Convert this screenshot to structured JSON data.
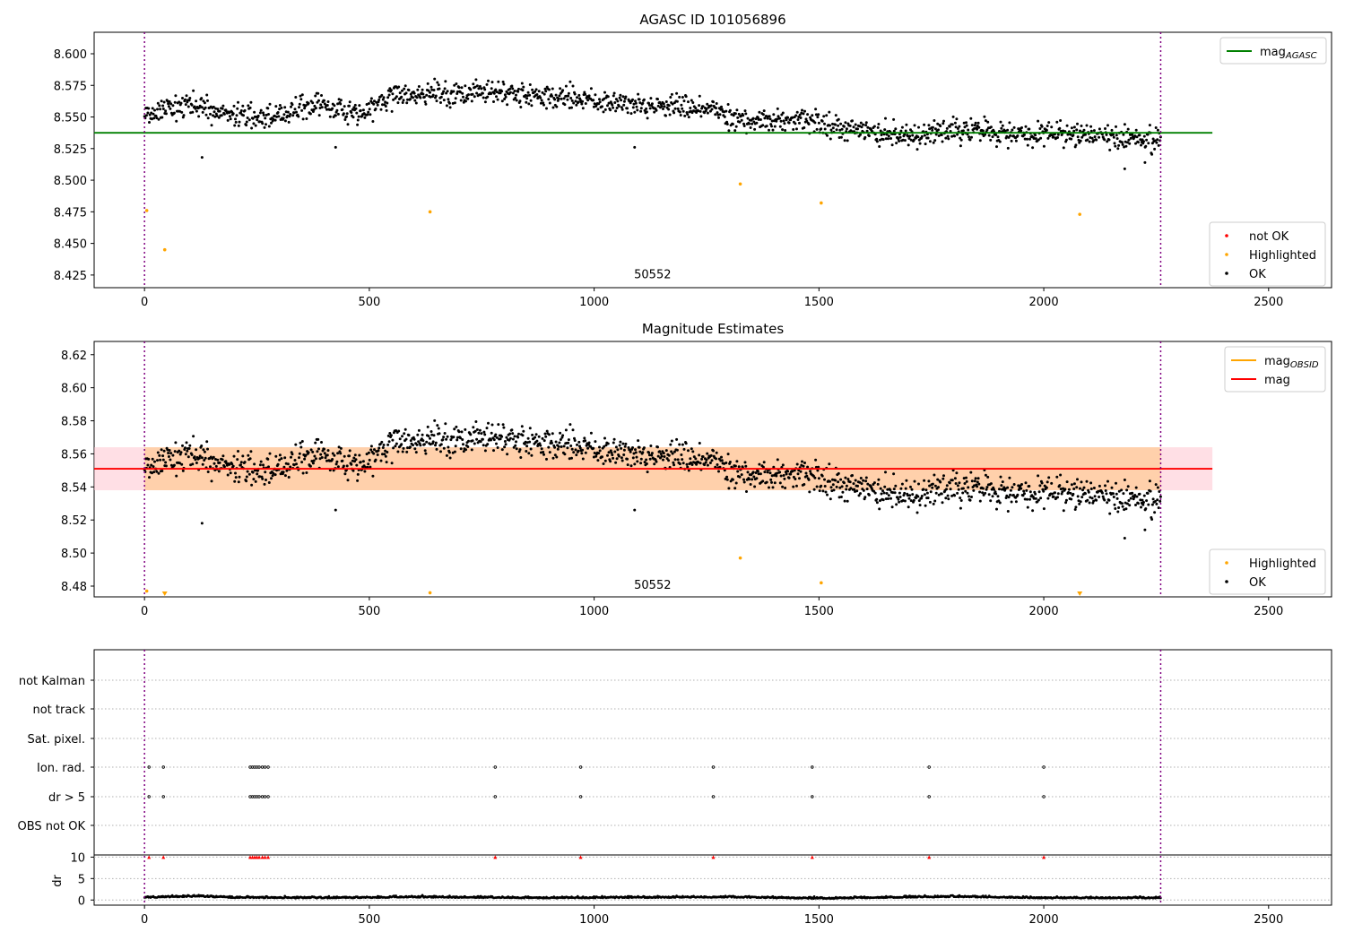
{
  "chart_data": [
    {
      "type": "scatter",
      "title": "AGASC ID 101056896",
      "xlim": [
        -112,
        2640
      ],
      "ylim": [
        8.415,
        8.617
      ],
      "xticks": [
        0,
        500,
        1000,
        1500,
        2000,
        2500
      ],
      "yticks": [
        8.425,
        8.45,
        8.475,
        8.5,
        8.525,
        8.55,
        8.575,
        8.6
      ],
      "ytick_format": 3,
      "obsid_label": {
        "text": "50552",
        "x": 1130,
        "y": 8.4225
      },
      "obs_boundaries": [
        0,
        2260
      ],
      "reference_line": {
        "name": "mag",
        "subscript": "AGASC",
        "value": 8.5375,
        "x_range": [
          -112,
          2375
        ],
        "color": "#008000"
      },
      "legend_lines": {
        "position": "upper right",
        "entries": [
          {
            "label": "mag",
            "subscript": "AGASC",
            "color": "#008000"
          }
        ]
      },
      "legend_points": {
        "position": "lower right",
        "entries": [
          {
            "label": "not OK",
            "color": "#ff0000"
          },
          {
            "label": "Highlighted",
            "color": "#ffa500"
          },
          {
            "label": "OK",
            "color": "#000000"
          }
        ]
      },
      "series": [
        {
          "name": "OK",
          "color": "#000000",
          "trend": [
            [
              0,
              8.552
            ],
            [
              100,
              8.559
            ],
            [
              200,
              8.551
            ],
            [
              300,
              8.551
            ],
            [
              400,
              8.561
            ],
            [
              480,
              8.553
            ],
            [
              560,
              8.567
            ],
            [
              650,
              8.568
            ],
            [
              760,
              8.571
            ],
            [
              850,
              8.567
            ],
            [
              960,
              8.565
            ],
            [
              1050,
              8.561
            ],
            [
              1150,
              8.558
            ],
            [
              1250,
              8.558
            ],
            [
              1340,
              8.545
            ],
            [
              1450,
              8.548
            ],
            [
              1550,
              8.541
            ],
            [
              1700,
              8.535
            ],
            [
              1800,
              8.54
            ],
            [
              1950,
              8.537
            ],
            [
              2100,
              8.536
            ],
            [
              2250,
              8.532
            ]
          ],
          "scatter": 0.0065,
          "n": 1500
        },
        {
          "name": "Highlighted",
          "color": "#ffa500",
          "x": [
            5,
            45,
            635,
            1325,
            1505,
            2080
          ],
          "y": [
            8.476,
            8.445,
            8.475,
            8.497,
            8.482,
            8.473
          ]
        }
      ]
    },
    {
      "type": "scatter",
      "title": "Magnitude Estimates",
      "xlim": [
        -112,
        2640
      ],
      "ylim": [
        8.4735,
        8.628
      ],
      "xticks": [
        0,
        500,
        1000,
        1500,
        2000,
        2500
      ],
      "yticks": [
        8.48,
        8.5,
        8.52,
        8.54,
        8.56,
        8.58,
        8.6,
        8.62
      ],
      "ytick_format": 2,
      "obsid_label": {
        "text": "50552",
        "x": 1130,
        "y": 8.4785
      },
      "obs_boundaries": [
        0,
        2260
      ],
      "mag_line": {
        "name": "mag",
        "value": 8.551,
        "x_range": [
          -112,
          2375
        ],
        "color": "#ff0000"
      },
      "mag_band": {
        "low": 8.538,
        "high": 8.564,
        "color": "#ffc0cb"
      },
      "obsid_band": {
        "low": 8.538,
        "high": 8.564,
        "x_range": [
          0,
          2260
        ],
        "color": "#ffa500"
      },
      "legend_lines": {
        "position": "upper right",
        "entries": [
          {
            "label": "mag",
            "subscript": "OBSID",
            "color": "#ffa500"
          },
          {
            "label": "mag",
            "subscript": "",
            "color": "#ff0000"
          }
        ]
      },
      "legend_points": {
        "position": "lower right",
        "entries": [
          {
            "label": "Highlighted",
            "color": "#ffa500"
          },
          {
            "label": "OK",
            "color": "#000000"
          }
        ]
      },
      "series": [
        {
          "name": "OK",
          "color": "#000000",
          "reuse": 0
        },
        {
          "name": "Highlighted",
          "color": "#ffa500",
          "x": [
            5,
            635,
            1325,
            1505
          ],
          "y": [
            8.477,
            8.476,
            8.497,
            8.482
          ],
          "clipped_x": [
            45,
            2080
          ]
        }
      ]
    },
    {
      "type": "scatter",
      "title": "",
      "xlim": [
        -112,
        2640
      ],
      "xticks": [
        0,
        500,
        1000,
        1500,
        2000,
        2500
      ],
      "obs_boundaries": [
        0,
        2260
      ],
      "flag_rows": [
        "not Kalman",
        "not track",
        "Sat. pixel.",
        "Ion. rad.",
        "dr > 5",
        "OBS not OK"
      ],
      "flag_events": [
        10,
        42,
        235,
        240,
        245,
        250,
        255,
        262,
        268,
        275,
        780,
        970,
        1265,
        1485,
        1745,
        2000
      ],
      "dr": {
        "ylabel": "dr",
        "yticks": [
          0,
          5,
          10
        ],
        "ylim": [
          -1.2,
          10.5
        ],
        "cap": 10,
        "cap_events": [
          10,
          42,
          235,
          240,
          245,
          250,
          255,
          262,
          268,
          275,
          780,
          970,
          1265,
          1485,
          1745,
          2000
        ],
        "trend": [
          [
            0,
            0.5
          ],
          [
            120,
            0.8
          ],
          [
            200,
            0.5
          ],
          [
            400,
            0.4
          ],
          [
            600,
            0.6
          ],
          [
            900,
            0.4
          ],
          [
            1300,
            0.6
          ],
          [
            1500,
            0.3
          ],
          [
            1800,
            0.7
          ],
          [
            2000,
            0.4
          ],
          [
            2260,
            0.4
          ]
        ]
      }
    }
  ]
}
